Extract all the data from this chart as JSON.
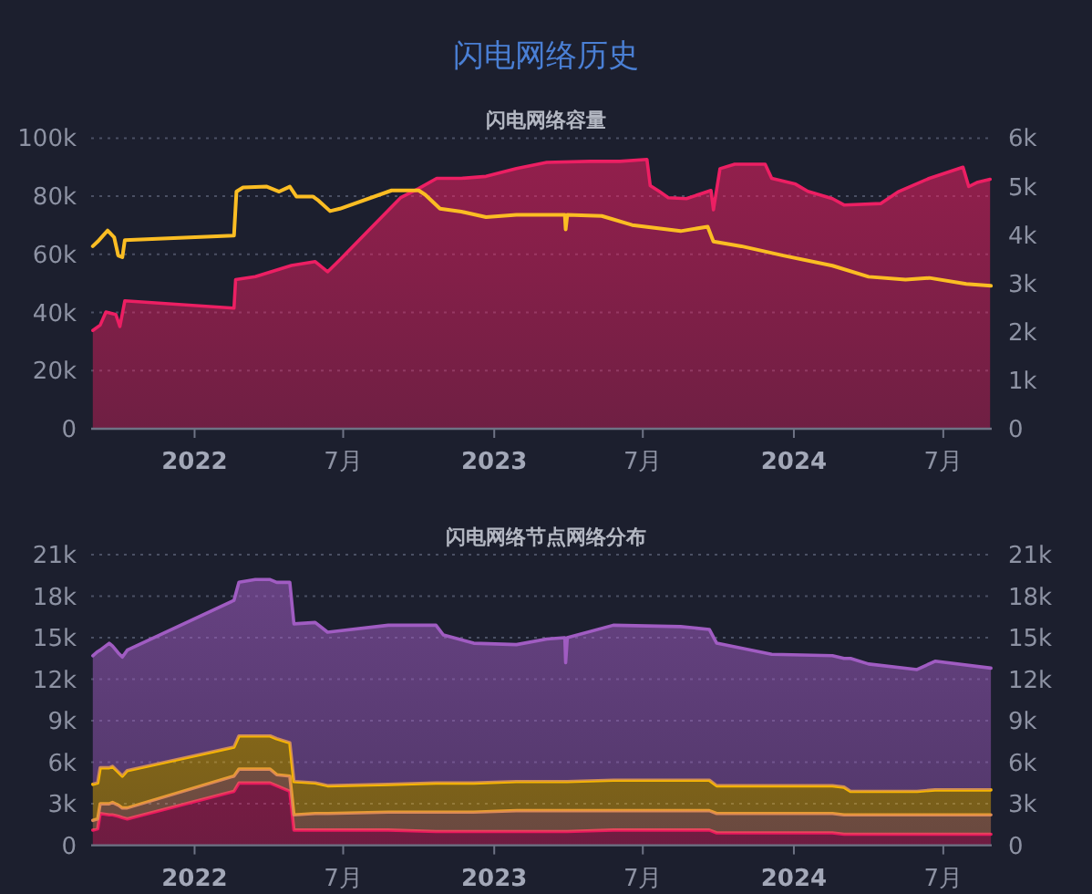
{
  "chart_data": [
    {
      "type": "area",
      "title": "闪电网络历史",
      "subtitle": "闪电网络容量",
      "xlim": [
        "2021-08-28",
        "2024-08-29"
      ],
      "xticks": [
        {
          "value": "2022-01-01",
          "label": "2022"
        },
        {
          "value": "2022-07-01",
          "label": "7月"
        },
        {
          "value": "2023-01-01",
          "label": "2023"
        },
        {
          "value": "2023-07-01",
          "label": "7月"
        },
        {
          "value": "2024-01-01",
          "label": "2024"
        },
        {
          "value": "2024-07-01",
          "label": "7月"
        }
      ],
      "ylim": [
        0,
        100000
      ],
      "yticks": [
        0,
        {
          "value": 20000,
          "label": "20k"
        },
        {
          "value": 40000,
          "label": "40k"
        },
        {
          "value": 60000,
          "label": "60k"
        },
        {
          "value": 80000,
          "label": "80k"
        },
        {
          "value": 100000,
          "label": "100k"
        }
      ],
      "y2lim": [
        0,
        6000
      ],
      "y2ticks": [
        0,
        {
          "value": 1000,
          "label": "1k"
        },
        {
          "value": 2000,
          "label": "2k"
        },
        {
          "value": 3000,
          "label": "3k"
        },
        {
          "value": 4000,
          "label": "4k"
        },
        {
          "value": 5000,
          "label": "5k"
        },
        {
          "value": 6000,
          "label": "6k"
        }
      ],
      "grid": "y",
      "series": [
        {
          "axis": "y2",
          "color": "#ec1f63",
          "x": [
            "2021-08-30",
            "2021-09-08",
            "2021-09-15",
            "2021-09-27",
            "2021-10-02",
            "2021-10-08",
            "2022-02-18",
            "2022-02-20",
            "2022-03-16",
            "2022-04-29",
            "2022-05-28",
            "2022-06-12",
            "2022-06-27",
            "2022-09-09",
            "2022-10-01",
            "2022-10-23",
            "2022-11-22",
            "2022-12-22",
            "2023-01-28",
            "2023-03-06",
            "2023-04-27",
            "2023-06-03",
            "2023-07-06",
            "2023-07-10",
            "2023-07-21",
            "2023-08-01",
            "2023-08-23",
            "2023-09-22",
            "2023-09-25",
            "2023-10-03",
            "2023-10-21",
            "2023-11-27",
            "2023-12-05",
            "2024-01-03",
            "2024-01-18",
            "2024-02-17",
            "2024-03-02",
            "2024-04-16",
            "2024-05-08",
            "2024-06-14",
            "2024-07-25",
            "2024-08-01",
            "2024-08-12",
            "2024-08-27"
          ],
          "values": [
            2030,
            2140,
            2410,
            2360,
            2110,
            2640,
            2490,
            3080,
            3140,
            3370,
            3450,
            3240,
            3490,
            4770,
            4960,
            5170,
            5170,
            5210,
            5370,
            5500,
            5520,
            5520,
            5560,
            5020,
            4900,
            4770,
            4750,
            4920,
            4520,
            5370,
            5460,
            5460,
            5170,
            5050,
            4900,
            4750,
            4620,
            4650,
            4900,
            5170,
            5400,
            5000,
            5090,
            5150
          ]
        },
        {
          "type": "line",
          "color": "#fbbd23",
          "x": [
            "2021-08-30",
            "2021-09-05",
            "2021-09-17",
            "2021-09-25",
            "2021-09-30",
            "2021-10-05",
            "2021-10-08",
            "2022-02-18",
            "2022-02-21",
            "2022-03-01",
            "2022-03-30",
            "2022-04-14",
            "2022-04-27",
            "2022-05-05",
            "2022-05-25",
            "2022-06-01",
            "2022-06-15",
            "2022-06-27",
            "2022-08-29",
            "2022-10-01",
            "2022-10-09",
            "2022-10-27",
            "2022-11-22",
            "2022-12-22",
            "2023-01-28",
            "2023-03-06",
            "2023-03-28",
            "2023-03-29",
            "2023-03-31",
            "2023-05-12",
            "2023-06-18",
            "2023-08-16",
            "2023-09-18",
            "2023-09-25",
            "2023-10-29",
            "2023-12-19",
            "2024-02-17",
            "2024-04-01",
            "2024-05-16",
            "2024-06-14",
            "2024-07-29",
            "2024-08-28"
          ],
          "values": [
            62800,
            64400,
            68200,
            65900,
            59600,
            59000,
            64900,
            66500,
            81600,
            83000,
            83300,
            81600,
            83300,
            79900,
            79900,
            78500,
            74900,
            75700,
            82000,
            82000,
            80500,
            75700,
            74700,
            72800,
            73600,
            73600,
            73600,
            68600,
            73600,
            73200,
            70100,
            68000,
            69500,
            64400,
            62800,
            59600,
            56100,
            52300,
            51300,
            51900,
            49800,
            49200
          ]
        }
      ]
    },
    {
      "type": "area",
      "subtitle": "闪电网络节点网络分布",
      "stacked": true,
      "xlim": [
        "2021-08-28",
        "2024-08-29"
      ],
      "xticks": [
        {
          "value": "2022-01-01",
          "label": "2022"
        },
        {
          "value": "2022-07-01",
          "label": "7月"
        },
        {
          "value": "2023-01-01",
          "label": "2023"
        },
        {
          "value": "2023-07-01",
          "label": "7月"
        },
        {
          "value": "2024-01-01",
          "label": "2024"
        },
        {
          "value": "2024-07-01",
          "label": "7月"
        }
      ],
      "ylim": [
        0,
        21000
      ],
      "yticks": [
        0,
        {
          "value": 3000,
          "label": "3k"
        },
        {
          "value": 6000,
          "label": "6k"
        },
        {
          "value": 9000,
          "label": "9k"
        },
        {
          "value": 12000,
          "label": "12k"
        },
        {
          "value": 15000,
          "label": "15k"
        },
        {
          "value": 18000,
          "label": "18k"
        },
        {
          "value": 21000,
          "label": "21k"
        }
      ],
      "y2lim": [
        0,
        21000
      ],
      "y2ticks": [
        0,
        {
          "value": 3000,
          "label": "3k"
        },
        {
          "value": 6000,
          "label": "6k"
        },
        {
          "value": 9000,
          "label": "9k"
        },
        {
          "value": 12000,
          "label": "12k"
        },
        {
          "value": 15000,
          "label": "15k"
        },
        {
          "value": 18000,
          "label": "18k"
        },
        {
          "value": 21000,
          "label": "21k"
        }
      ],
      "grid": "y",
      "x": [
        "2021-08-30",
        "2021-09-05",
        "2021-09-08",
        "2021-09-19",
        "2021-09-23",
        "2021-09-30",
        "2021-10-05",
        "2021-10-11",
        "2022-02-18",
        "2022-02-24",
        "2022-03-16",
        "2022-04-03",
        "2022-04-11",
        "2022-04-27",
        "2022-05-02",
        "2022-05-28",
        "2022-06-12",
        "2022-08-25",
        "2022-10-22",
        "2022-10-31",
        "2022-12-07",
        "2023-01-28",
        "2023-03-06",
        "2023-03-28",
        "2023-03-29",
        "2023-03-31",
        "2023-05-26",
        "2023-08-16",
        "2023-09-20",
        "2023-09-29",
        "2023-12-05",
        "2024-02-17",
        "2024-03-02",
        "2024-03-10",
        "2024-04-01",
        "2024-05-30",
        "2024-06-21",
        "2024-08-28"
      ],
      "series": [
        {
          "color": "#ea185e",
          "values": [
            1100,
            1200,
            2300,
            2200,
            2200,
            2100,
            2000,
            1900,
            3900,
            4500,
            4500,
            4500,
            4300,
            3900,
            1100,
            1100,
            1100,
            1100,
            1000,
            1000,
            1000,
            1000,
            1000,
            1000,
            1000,
            1000,
            1100,
            1100,
            1100,
            900,
            900,
            900,
            800,
            800,
            800,
            800,
            800,
            800
          ]
        },
        {
          "color": "#dc8858",
          "values": [
            700,
            700,
            700,
            800,
            900,
            800,
            700,
            800,
            1100,
            1000,
            1000,
            1000,
            800,
            1100,
            1100,
            1200,
            1200,
            1300,
            1400,
            1400,
            1400,
            1500,
            1500,
            1500,
            1500,
            1500,
            1400,
            1400,
            1400,
            1400,
            1400,
            1400,
            1400,
            1400,
            1400,
            1400,
            1400,
            1400
          ]
        },
        {
          "color": "#f7b500",
          "values": [
            2600,
            2600,
            2600,
            2600,
            2600,
            2400,
            2300,
            2700,
            2100,
            2400,
            2400,
            2400,
            2600,
            2400,
            2400,
            2200,
            2000,
            2000,
            2100,
            2100,
            2100,
            2100,
            2100,
            2100,
            2100,
            2100,
            2200,
            2200,
            2200,
            2000,
            2000,
            2000,
            2000,
            1700,
            1700,
            1700,
            1800,
            1800
          ]
        },
        {
          "color": "#a05cc2",
          "values": [
            9300,
            9500,
            8500,
            9000,
            8700,
            8600,
            8600,
            8700,
            10600,
            11100,
            11300,
            11300,
            11300,
            11600,
            11400,
            11600,
            11100,
            11500,
            11400,
            10700,
            10100,
            9900,
            10300,
            10400,
            8600,
            10400,
            11200,
            11100,
            10900,
            10300,
            9500,
            9400,
            9300,
            9600,
            9200,
            8800,
            9300,
            8800
          ]
        }
      ]
    }
  ]
}
